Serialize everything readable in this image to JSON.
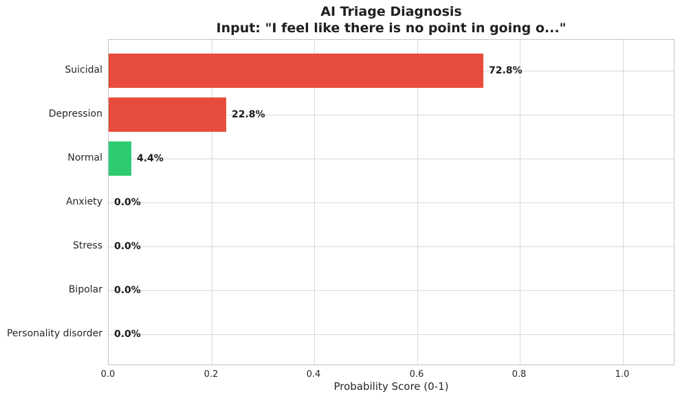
{
  "chart_data": {
    "type": "bar",
    "orientation": "horizontal",
    "title": "AI Triage Diagnosis",
    "subtitle": "Input: \"I feel like there is no point in going o...\"",
    "categories": [
      "Suicidal",
      "Depression",
      "Normal",
      "Anxiety",
      "Stress",
      "Bipolar",
      "Personality disorder"
    ],
    "values": [
      0.728,
      0.228,
      0.044,
      0.0,
      0.0,
      0.0,
      0.0
    ],
    "value_labels": [
      "72.8%",
      "22.8%",
      "4.4%",
      "0.0%",
      "0.0%",
      "0.0%",
      "0.0%"
    ],
    "bar_colors": [
      "#e74c3c",
      "#e74c3c",
      "#2ecc71",
      "#e74c3c",
      "#e74c3c",
      "#e74c3c",
      "#e74c3c"
    ],
    "xlabel": "Probability Score (0-1)",
    "ylabel": "",
    "xlim": [
      0.0,
      1.1
    ],
    "xticks": [
      0.0,
      0.2,
      0.4,
      0.6,
      0.8,
      1.0
    ],
    "xtick_labels": [
      "0.0",
      "0.2",
      "0.4",
      "0.6",
      "0.8",
      "1.0"
    ],
    "grid": true,
    "legend": "none",
    "colors": {
      "danger": "#e74c3c",
      "safe": "#2ecc71",
      "grid": "#d8d8d8",
      "spine": "#c3c3c3",
      "text": "#262626",
      "background": "#ffffff"
    }
  }
}
